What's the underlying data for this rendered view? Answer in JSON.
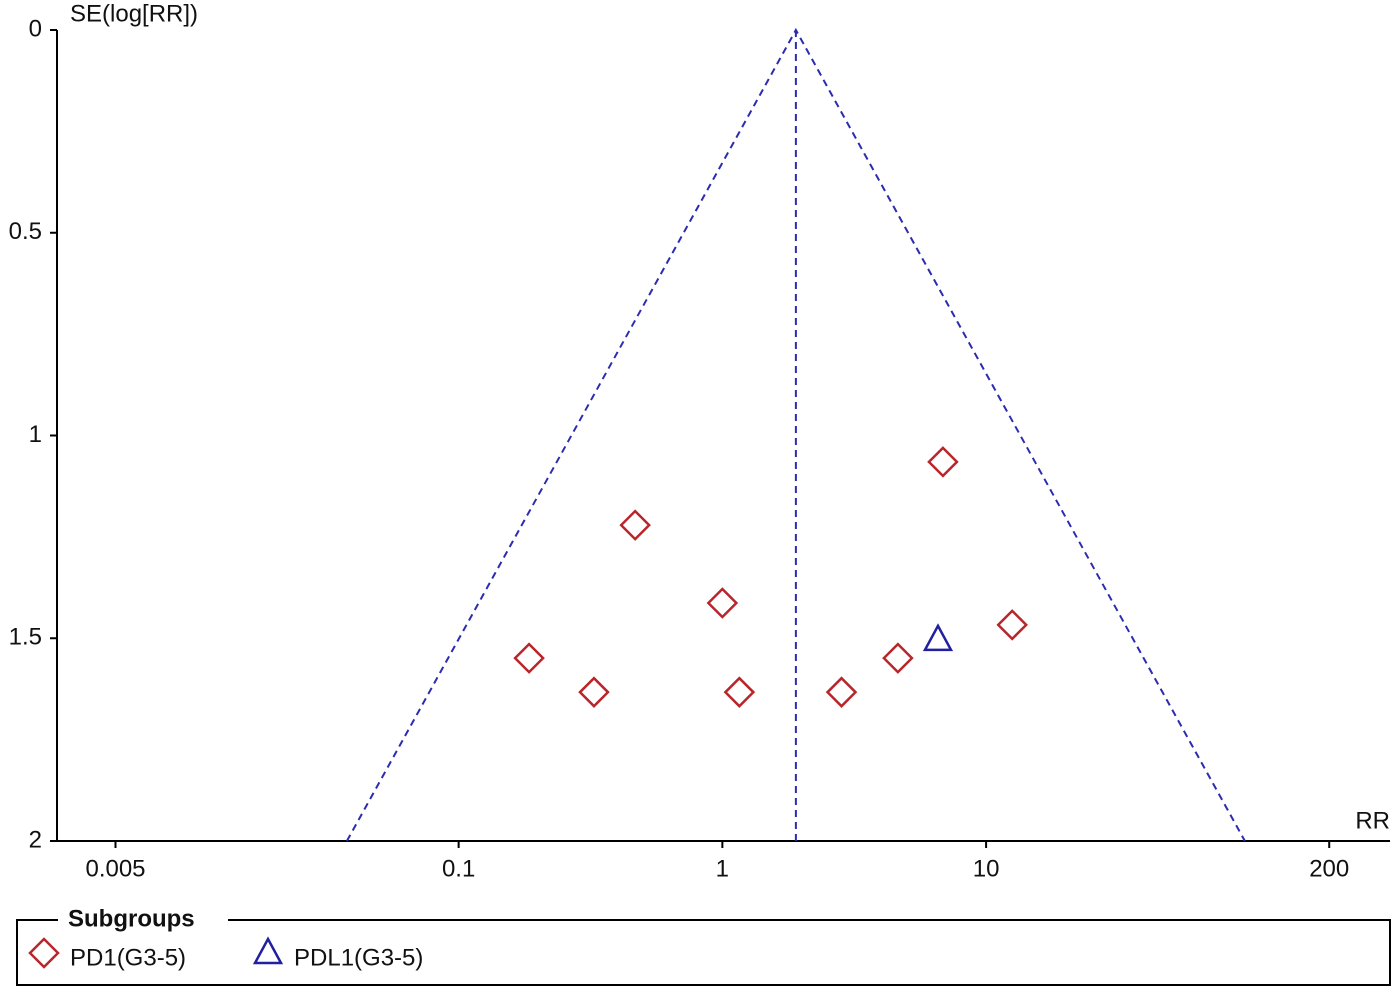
{
  "chart_data": {
    "type": "funnel",
    "x_label": "RR",
    "y_label": "SE(log[RR])",
    "xscale": "log",
    "y_inverted": true,
    "xlim": [
      0.003,
      340
    ],
    "ylim": [
      0,
      2
    ],
    "xticks": [
      0.005,
      0.1,
      1,
      10,
      200
    ],
    "yticks": [
      0,
      0.5,
      1,
      1.5,
      2
    ],
    "summary": 1.9,
    "funnel_color": "#2c2cb0",
    "legend_title": "Subgroups",
    "series": [
      {
        "name": "PD1(G3-5)",
        "color": "#b8262c",
        "marker": "diamond",
        "x": [
          6.86,
          0.467,
          1.0,
          12.56,
          0.185,
          4.63,
          0.326,
          1.16,
          2.83
        ],
        "y": [
          1.065,
          1.221,
          1.413,
          1.467,
          1.549,
          1.549,
          1.633,
          1.633,
          1.633
        ]
      },
      {
        "name": "PDL1(G3-5)",
        "color": "#2020a0",
        "marker": "triangle",
        "x": [
          6.57
        ],
        "y": [
          1.504
        ]
      }
    ]
  }
}
